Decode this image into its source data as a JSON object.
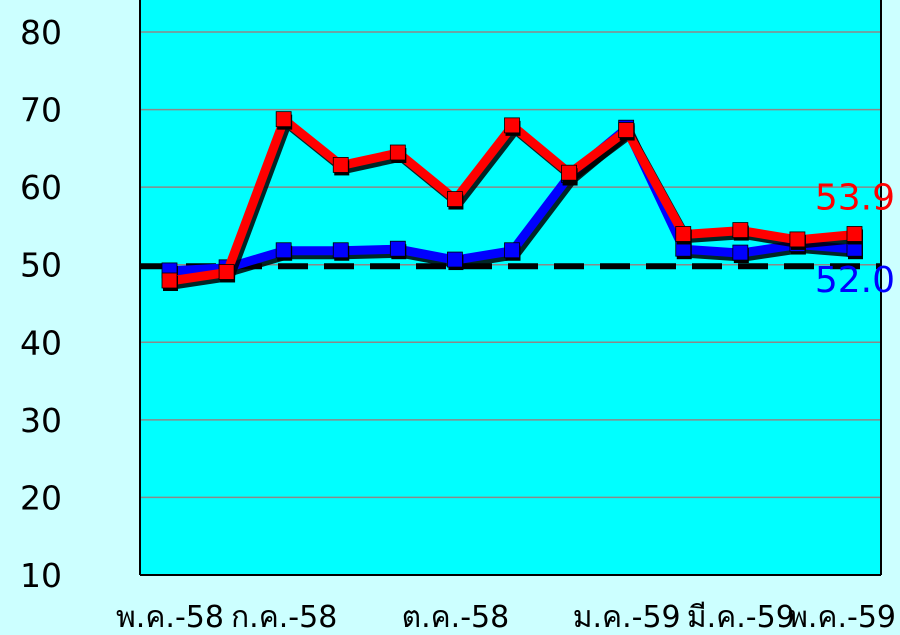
{
  "chart_data": {
    "type": "line",
    "title": "",
    "xlabel": "",
    "ylabel": "",
    "ylim": [
      10,
      85
    ],
    "y_ticks": [
      10,
      20,
      30,
      40,
      50,
      60,
      70,
      80
    ],
    "x_tick_labels": [
      "พ.ค.-58",
      "ก.ค.-58",
      "ต.ค.-58",
      "ม.ค.-59",
      "มี.ค.-59",
      "พ.ค.-59"
    ],
    "x_tick_indices": [
      0,
      2,
      5,
      8,
      10,
      12
    ],
    "num_points": 13,
    "grid": true,
    "reference_line": {
      "value": 49.8,
      "style": "dashed",
      "color": "#000000"
    },
    "plot_background": "#00ffff",
    "page_background": "#ccffff",
    "series": [
      {
        "color": "#0000ff",
        "values": [
          49.2,
          49.6,
          51.8,
          51.8,
          52.0,
          50.6,
          51.8,
          61.5,
          67.6,
          52.0,
          51.5,
          52.6,
          52.0
        ],
        "end_label": "52.0"
      },
      {
        "color": "#ff0000",
        "values": [
          47.9,
          49.0,
          68.7,
          62.8,
          64.4,
          58.4,
          67.9,
          61.8,
          67.3,
          53.9,
          54.4,
          53.2,
          53.9
        ],
        "end_label": "53.9"
      }
    ]
  }
}
